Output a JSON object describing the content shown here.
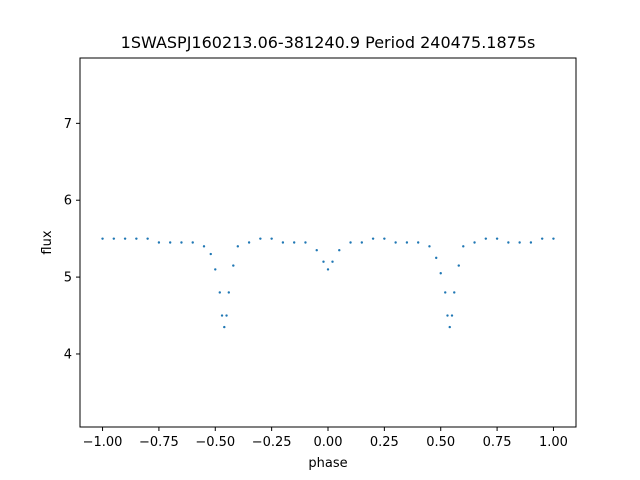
{
  "chart_data": {
    "type": "scatter",
    "title": "1SWASPJ160213.06-381240.9 Period 240475.1875s",
    "xlabel": "phase",
    "ylabel": "flux",
    "xlim": [
      -1.1,
      1.1
    ],
    "ylim": [
      3.05,
      7.85
    ],
    "x_ticks": [
      -1.0,
      -0.75,
      -0.5,
      -0.25,
      0.0,
      0.25,
      0.5,
      0.75,
      1.0
    ],
    "x_tick_labels": [
      "−1.00",
      "−0.75",
      "−0.50",
      "−0.25",
      "0.00",
      "0.25",
      "0.50",
      "0.75",
      "1.00"
    ],
    "y_ticks": [
      4,
      5,
      6,
      7
    ],
    "y_tick_labels": [
      "4",
      "5",
      "6",
      "7"
    ],
    "grid": false,
    "legend": "none",
    "marker_color": "#1f77b4",
    "series": [
      {
        "x": [
          -1.0,
          -0.95,
          -0.9,
          -0.85,
          -0.8,
          -0.75,
          -0.7,
          -0.65,
          -0.6,
          -0.55,
          -0.52,
          -0.5,
          -0.48,
          -0.47,
          -0.46,
          -0.45,
          -0.44,
          -0.42,
          -0.4,
          -0.35,
          -0.3,
          -0.25,
          -0.2,
          -0.15,
          -0.1,
          -0.05,
          -0.02,
          0.0,
          0.02,
          0.05,
          0.1,
          0.15,
          0.2,
          0.25,
          0.3,
          0.35,
          0.4,
          0.45,
          0.48,
          0.5,
          0.52,
          0.53,
          0.54,
          0.55,
          0.56,
          0.58,
          0.6,
          0.65,
          0.7,
          0.75,
          0.8,
          0.85,
          0.9,
          0.95,
          1.0
        ],
        "y": [
          5.5,
          5.5,
          5.5,
          5.5,
          5.5,
          5.45,
          5.45,
          5.45,
          5.45,
          5.4,
          5.3,
          5.1,
          4.8,
          4.5,
          4.35,
          4.5,
          4.8,
          5.15,
          5.4,
          5.45,
          5.5,
          5.5,
          5.45,
          5.45,
          5.45,
          5.35,
          5.2,
          5.1,
          5.2,
          5.35,
          5.45,
          5.45,
          5.5,
          5.5,
          5.45,
          5.45,
          5.45,
          5.4,
          5.25,
          5.05,
          4.8,
          4.5,
          4.35,
          4.5,
          4.8,
          5.15,
          5.4,
          5.45,
          5.5,
          5.5,
          5.45,
          5.45,
          5.45,
          5.5,
          5.5
        ]
      }
    ]
  }
}
